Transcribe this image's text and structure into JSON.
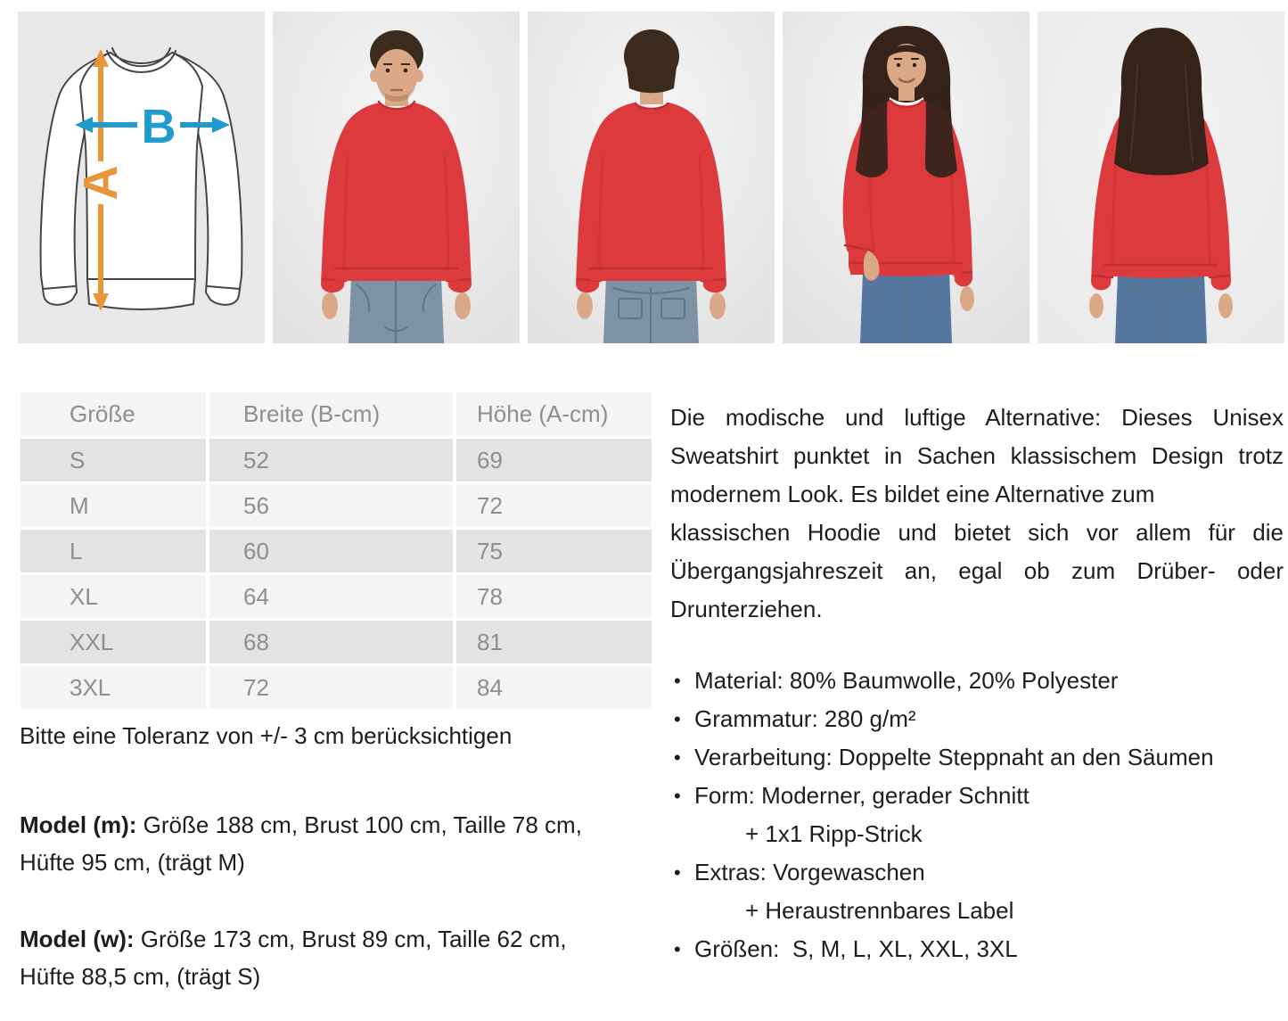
{
  "diagram": {
    "label_a": "A",
    "label_b": "B"
  },
  "size_table": {
    "headers": [
      "Größe",
      "Breite (B-cm)",
      "Höhe (A-cm)"
    ],
    "rows": [
      [
        "S",
        "52",
        "69"
      ],
      [
        "M",
        "56",
        "72"
      ],
      [
        "L",
        "60",
        "75"
      ],
      [
        "XL",
        "64",
        "78"
      ],
      [
        "XXL",
        "68",
        "81"
      ],
      [
        "3XL",
        "72",
        "84"
      ]
    ]
  },
  "tolerance_note": "Bitte eine Toleranz von +/- 3 cm berücksichtigen",
  "models": [
    {
      "label": "Model (m):",
      "line1": "Größe 188 cm, Brust 100 cm, Taille 78 cm,",
      "line2": "Hüfte 95 cm, (trägt M)"
    },
    {
      "label": "Model (w):",
      "line1": "Größe 173 cm, Brust 89 cm, Taille 62 cm,",
      "line2": "Hüfte 88,5 cm, (trägt S)"
    }
  ],
  "description": {
    "lines": [
      {
        "text": "Die modische und luftige Alternative: Dieses Unisex",
        "justify": true
      },
      {
        "text": "Sweatshirt punktet in Sachen klassischem Design trotz",
        "justify": true
      },
      {
        "text": "modernem Look. Es bildet eine Alternative zum",
        "justify": false
      },
      {
        "text": "klassischen Hoodie und bietet sich vor allem für die",
        "justify": true
      },
      {
        "text": "Übergangsjahreszeit an, egal ob zum Drüber- oder",
        "justify": true
      },
      {
        "text": "Drunterziehen.",
        "justify": false
      }
    ]
  },
  "features": [
    {
      "text": "Material: 80% Baumwolle, 20% Polyester"
    },
    {
      "text": "Grammatur: 280 g/m²"
    },
    {
      "text": "Verarbeitung: Doppelte Steppnaht an den Säumen"
    },
    {
      "text": "Form: Moderner, gerader Schnitt",
      "extra": "+ 1x1 Ripp-Strick"
    },
    {
      "text": "Extras: Vorgewaschen",
      "extra": "+ Heraustrennbares Label"
    },
    {
      "text": "Größen:  S, M, L, XL, XXL, 3XL"
    }
  ],
  "bullet_glyph": "•",
  "colors": {
    "red": "#dc3a3d",
    "red_dark": "#bf2f33",
    "jeans": "#7d92a4",
    "jeans_dark": "#5e7689",
    "jeans_w": "#55779f",
    "skin": "#dba887",
    "skin_shadow": "#bd8a66",
    "hair_m": "#3d2b1e",
    "hair_w": "#36241a",
    "panel_bg": "#e8e8e9",
    "outline": "#454545",
    "arrow_orange": "#e8963a",
    "arrow_blue": "#1f9ccd",
    "table_text": "#8e8e8e",
    "row_dark": "#e3e3e4",
    "row_light": "#f4f4f5",
    "text_color": "#1d1d1b"
  }
}
